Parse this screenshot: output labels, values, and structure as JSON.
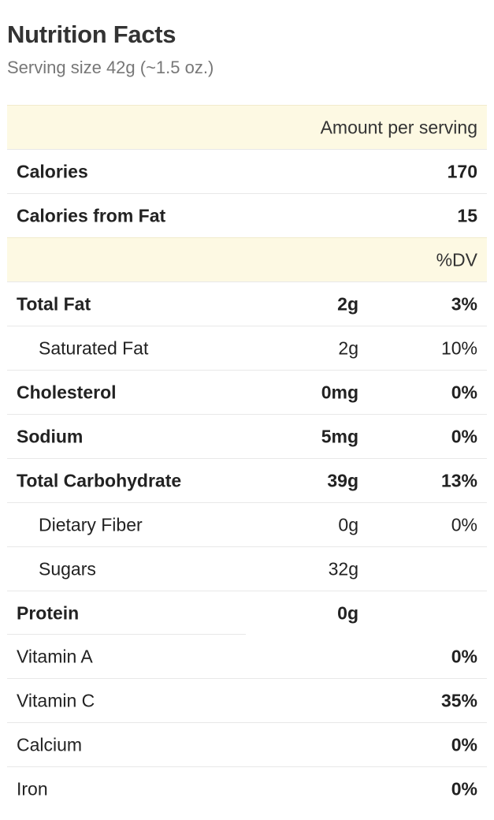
{
  "header": {
    "title": "Nutrition Facts",
    "serving_size": "Serving size 42g (~1.5 oz.)"
  },
  "table": {
    "amount_header": "Amount per serving",
    "calories": {
      "label": "Calories",
      "value": "170"
    },
    "calories_from_fat": {
      "label": "Calories from Fat",
      "value": "15"
    },
    "dv_header": "%DV",
    "nutrients": [
      {
        "label": "Total Fat",
        "amount": "2g",
        "dv": "3%"
      },
      {
        "label": "Saturated Fat",
        "amount": "2g",
        "dv": "10%"
      },
      {
        "label": "Cholesterol",
        "amount": "0mg",
        "dv": "0%"
      },
      {
        "label": "Sodium",
        "amount": "5mg",
        "dv": "0%"
      },
      {
        "label": "Total Carbohydrate",
        "amount": "39g",
        "dv": "13%"
      },
      {
        "label": "Dietary Fiber",
        "amount": "0g",
        "dv": "0%"
      },
      {
        "label": "Sugars",
        "amount": "32g",
        "dv": ""
      },
      {
        "label": "Protein",
        "amount": "0g",
        "dv": ""
      }
    ],
    "vitamins": [
      {
        "label": "Vitamin A",
        "dv": "0%"
      },
      {
        "label": "Vitamin C",
        "dv": "35%"
      },
      {
        "label": "Calcium",
        "dv": "0%"
      },
      {
        "label": "Iron",
        "dv": "0%"
      }
    ]
  },
  "colors": {
    "header_band": "#fdf9e3",
    "divider": "#e8e8e8",
    "subtitle": "#777777"
  }
}
